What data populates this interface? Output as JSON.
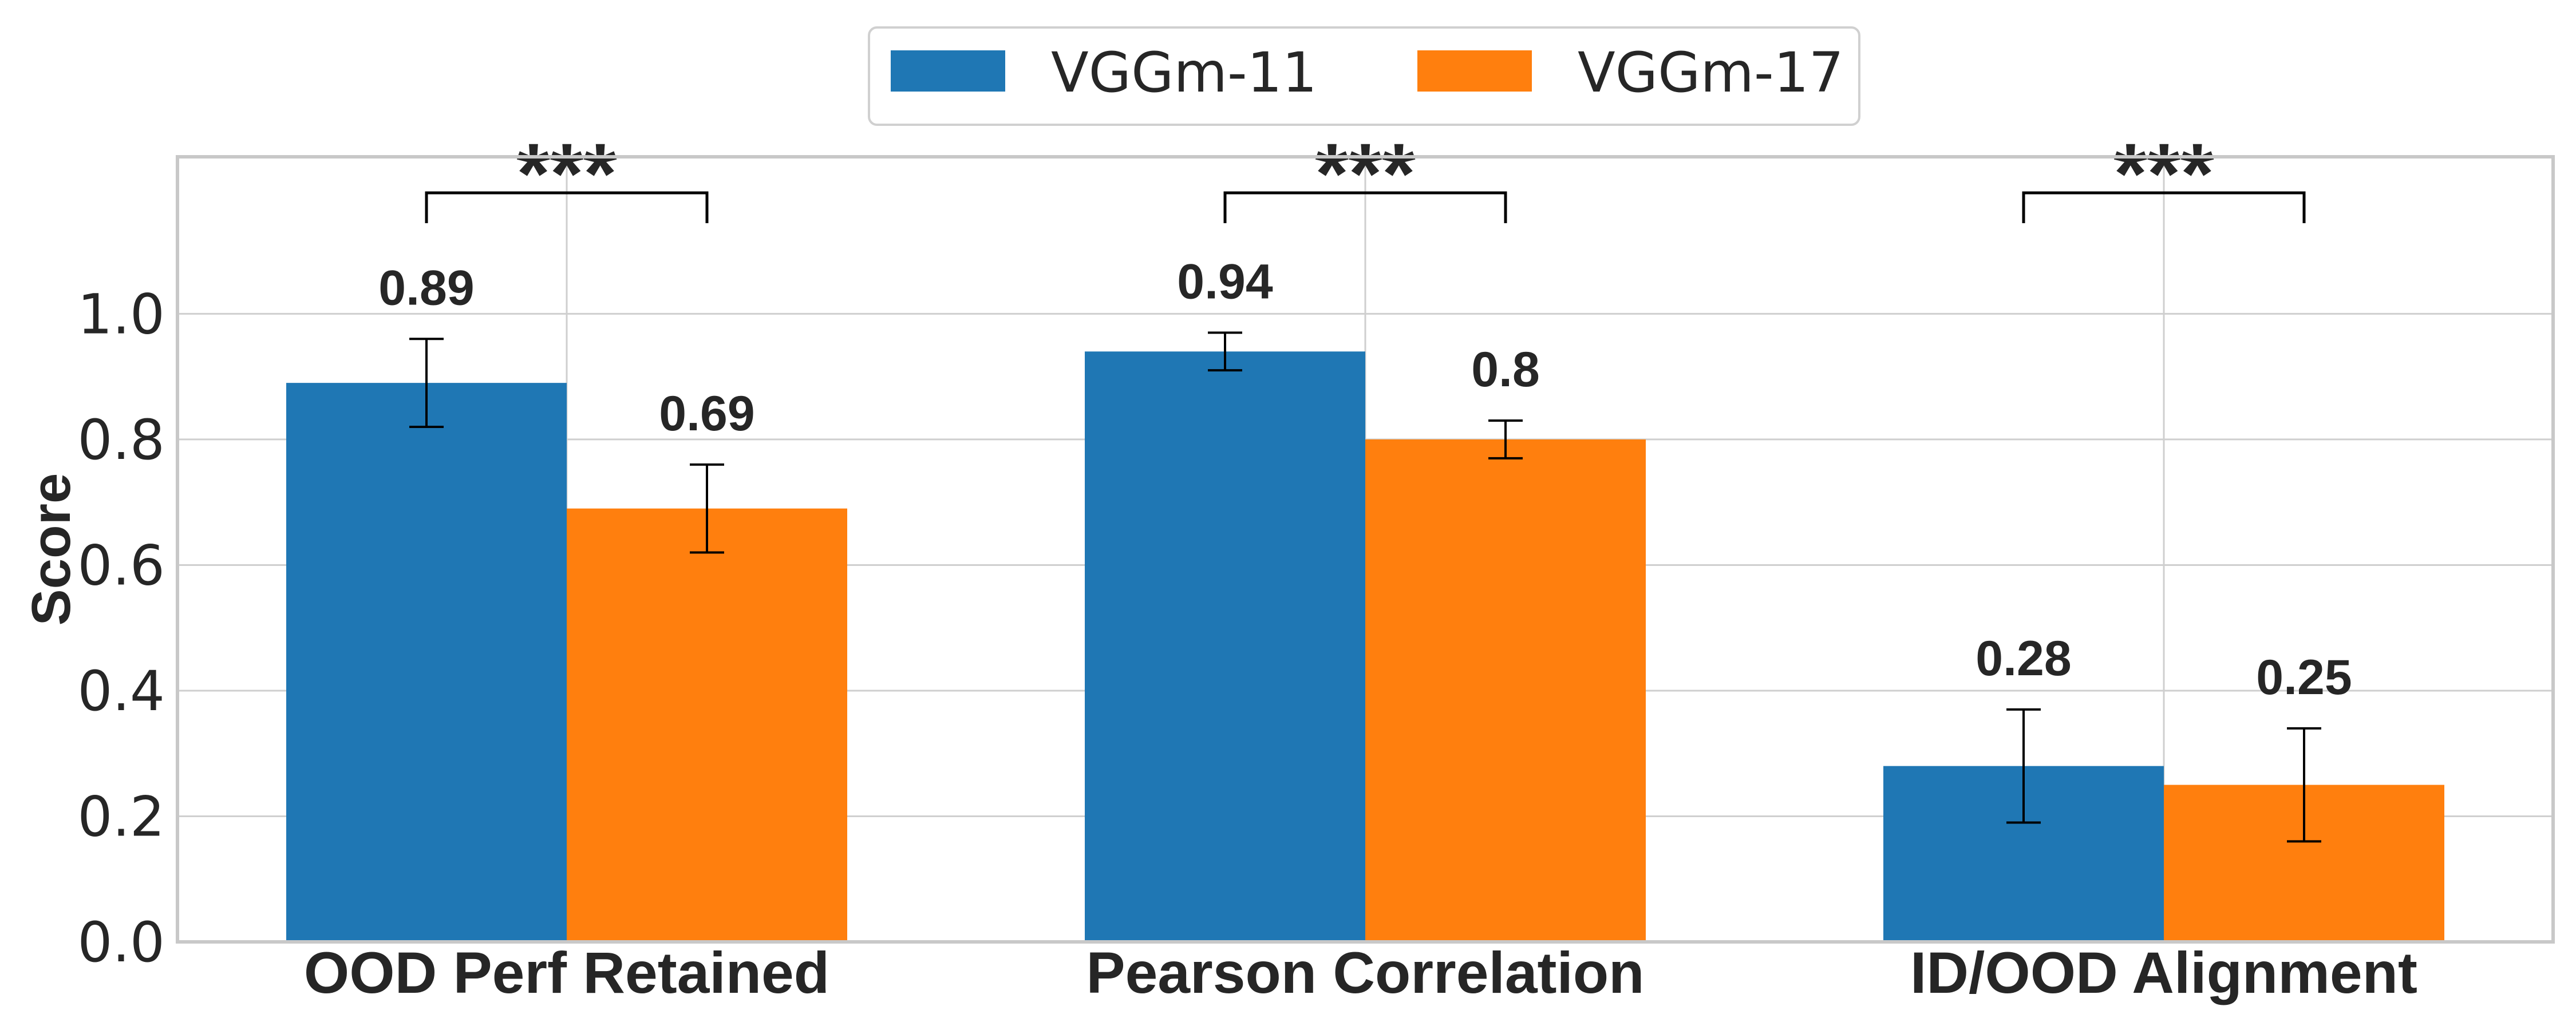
{
  "chart_data": {
    "type": "bar",
    "title": "",
    "xlabel": "",
    "ylabel": "Score",
    "ylim": [
      0.0,
      1.25
    ],
    "yticks": [
      "0.0",
      "0.2",
      "0.4",
      "0.6",
      "0.8",
      "1.0"
    ],
    "categories": [
      "OOD Perf Retained",
      "Pearson Correlation",
      "ID/OOD Alignment"
    ],
    "series": [
      {
        "name": "VGGm-11",
        "color": "#1f77b4",
        "values": [
          0.89,
          0.94,
          0.28
        ],
        "errors": [
          0.07,
          0.03,
          0.09
        ],
        "labels": [
          "0.89",
          "0.94",
          "0.28"
        ]
      },
      {
        "name": "VGGm-17",
        "color": "#ff7f0e",
        "values": [
          0.69,
          0.8,
          0.25
        ],
        "errors": [
          0.07,
          0.03,
          0.09
        ],
        "labels": [
          "0.69",
          "0.8",
          "0.25"
        ]
      }
    ],
    "significance": [
      "***",
      "***",
      "***"
    ],
    "legend": {
      "location": "top-center",
      "entries": [
        "VGGm-11",
        "VGGm-17"
      ]
    },
    "grid": true
  }
}
